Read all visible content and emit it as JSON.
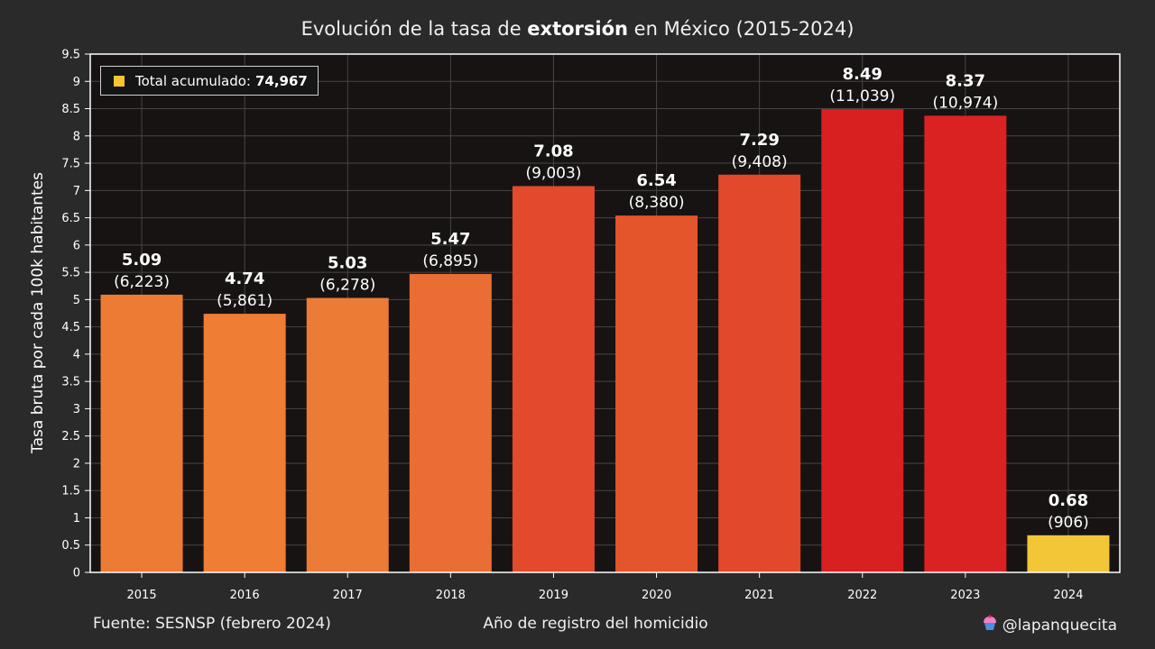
{
  "title": {
    "prefix": "Evolución de la tasa de ",
    "bold": "extorsión",
    "suffix": " en México (2015-2024)"
  },
  "legend": {
    "label": "Total acumulado:",
    "value": "74,967",
    "color": "#f5c533"
  },
  "footer": {
    "source": "Fuente: SESNSP (febrero 2024)",
    "xlabel": "Año de registro del homicidio",
    "handle": "@lapanquecita",
    "icon": "cupcake-icon"
  },
  "chart_data": {
    "type": "bar",
    "title": "Evolución de la tasa de extorsión en México (2015-2024)",
    "xlabel": "Año de registro del homicidio",
    "ylabel": "Tasa bruta por cada 100k habitantes",
    "ylim": [
      0,
      9.5
    ],
    "yticks": [
      0,
      0.5,
      1,
      1.5,
      2,
      2.5,
      3,
      3.5,
      4,
      4.5,
      5,
      5.5,
      6,
      6.5,
      7,
      7.5,
      8,
      8.5,
      9,
      9.5
    ],
    "grid": true,
    "legend_position": "top-left",
    "categories": [
      "2015",
      "2016",
      "2017",
      "2018",
      "2019",
      "2020",
      "2021",
      "2022",
      "2023",
      "2024"
    ],
    "values": [
      5.09,
      4.74,
      5.03,
      5.47,
      7.08,
      6.54,
      7.29,
      8.49,
      8.37,
      0.68
    ],
    "counts": [
      "(6,223)",
      "(5,861)",
      "(6,278)",
      "(6,895)",
      "(9,003)",
      "(8,380)",
      "(9,408)",
      "(11,039)",
      "(10,974)",
      "(906)"
    ],
    "colors": [
      "#ee7b33",
      "#ef7d33",
      "#ec7b35",
      "#ea6d33",
      "#e34a2b",
      "#e5552c",
      "#e2482a",
      "#d92020",
      "#db2222",
      "#f3c638"
    ]
  }
}
